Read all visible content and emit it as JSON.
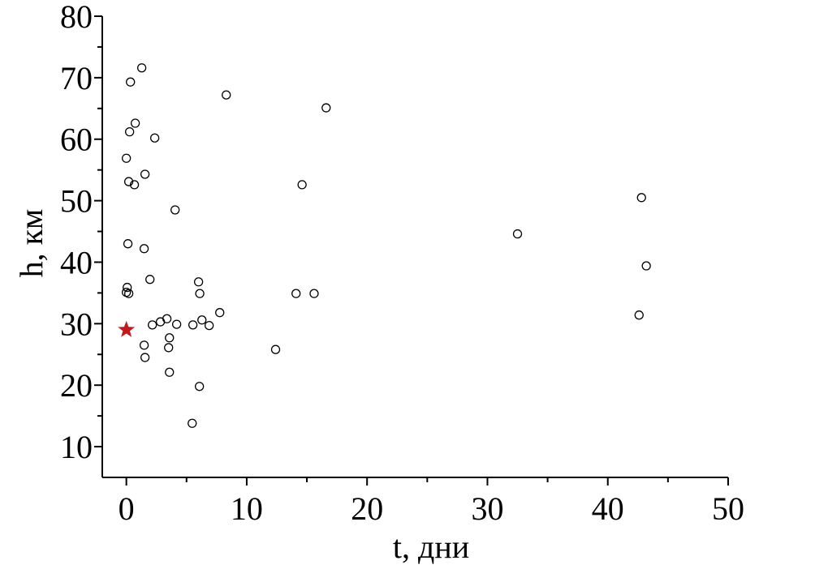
{
  "chart_data": {
    "type": "scatter",
    "xlabel": "t, дни",
    "ylabel": "h, км",
    "xlim": [
      -2,
      50
    ],
    "ylim": [
      5,
      80
    ],
    "xticks": [
      0,
      10,
      20,
      30,
      40,
      50
    ],
    "yticks": [
      10,
      20,
      30,
      40,
      50,
      60,
      70,
      80
    ],
    "series": [
      {
        "color": "#000000",
        "marker": "circle",
        "x": [
          1.28,
          0.34,
          8.3,
          16.6,
          0.74,
          0.27,
          2.36,
          0,
          1.55,
          0.2,
          0.67,
          14.6,
          4.05,
          42.8,
          32.5,
          0.13,
          1.48,
          43.2,
          1.96,
          6.0,
          0.07,
          0,
          0.2,
          6.1,
          14.1,
          15.6,
          7.76,
          42.6,
          3.37,
          2.83,
          6.28,
          2.16,
          4.18,
          5.53,
          6.88,
          3.58,
          3.51,
          1.48,
          12.4,
          1.55,
          3.58,
          6.07,
          5.47
        ],
        "values": [
          71.6,
          69.3,
          67.2,
          65.1,
          62.6,
          61.2,
          60.2,
          56.9,
          54.3,
          53.1,
          52.6,
          52.6,
          48.5,
          50.5,
          44.6,
          43.0,
          42.2,
          39.4,
          37.2,
          36.8,
          35.9,
          35.1,
          34.9,
          34.9,
          34.9,
          34.9,
          31.8,
          31.4,
          30.8,
          30.3,
          30.6,
          29.8,
          29.9,
          29.8,
          29.7,
          27.7,
          26.1,
          26.5,
          25.8,
          24.5,
          22.1,
          19.8,
          13.8
        ]
      },
      {
        "color": "#c8161d",
        "marker": "star",
        "x": [
          0
        ],
        "values": [
          29.0
        ]
      }
    ]
  }
}
